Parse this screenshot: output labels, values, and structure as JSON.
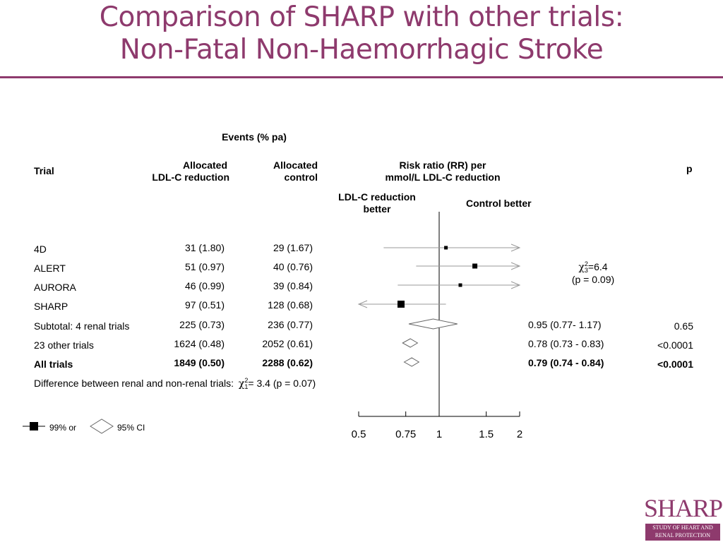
{
  "title": {
    "line1": "Comparison of SHARP with other trials:",
    "line2": "Non-Fatal Non-Haemorrhagic Stroke"
  },
  "headers": {
    "events": "Events (% pa)",
    "trial": "Trial",
    "allocated_ldl_1": "Allocated",
    "allocated_ldl_2": "LDL-C reduction",
    "allocated_control_1": "Allocated",
    "allocated_control_2": "control",
    "rr_1": "Risk ratio (RR) per",
    "rr_2": "mmol/L LDL-C reduction",
    "p": "p",
    "ldl_better_1": "LDL-C reduction",
    "ldl_better_2": "better",
    "control_better": "Control better"
  },
  "heterogeneity": {
    "chi_symbol": "χ",
    "sup": "2",
    "sub": "3",
    "value": "=6.4",
    "p": "(p = 0.09)"
  },
  "difference": {
    "label": "Difference between renal and non-renal trials:",
    "chi_symbol": "χ",
    "sup": "2",
    "sub": "1",
    "value": "= 3.4 (p = 0.07)"
  },
  "legend": {
    "square_label": "99% or",
    "diamond_label": "95% CI"
  },
  "logo": {
    "word": "SHARP",
    "line1": "STUDY OF HEART AND",
    "line2": "RENAL PROTECTION"
  },
  "colors": {
    "title": "#8e3a6d",
    "marks": "#000000",
    "ci_lines": "#999999"
  },
  "chart_data": {
    "type": "forest",
    "x_axis": {
      "scale": "log",
      "ticks": [
        0.5,
        0.75,
        1,
        1.5,
        2
      ],
      "tick_labels": [
        "0.5",
        "0.75",
        "1",
        "1.5",
        "2"
      ],
      "range": [
        0.5,
        2
      ],
      "reference_line": 1
    },
    "rows": [
      {
        "trial": "4D",
        "allocated_ldl": "31 (1.80)",
        "allocated_control": "29 (1.67)",
        "rr": 1.06,
        "lo": 0.62,
        "hi": 2,
        "arrow_hi": true,
        "shape": "square",
        "size": "small",
        "bold": false,
        "rr_text": "",
        "p": ""
      },
      {
        "trial": "ALERT",
        "allocated_ldl": "51 (0.97)",
        "allocated_control": "40 (0.76)",
        "rr": 1.36,
        "lo": 0.82,
        "hi": 2,
        "arrow_hi": true,
        "shape": "square",
        "size": "medium",
        "bold": false,
        "rr_text": "",
        "p": ""
      },
      {
        "trial": "AURORA",
        "allocated_ldl": "46 (0.99)",
        "allocated_control": "39 (0.84)",
        "rr": 1.2,
        "lo": 0.7,
        "hi": 2,
        "arrow_hi": true,
        "shape": "square",
        "size": "small",
        "bold": false,
        "rr_text": "",
        "p": ""
      },
      {
        "trial": "SHARP",
        "allocated_ldl": "97 (0.51)",
        "allocated_control": "128 (0.68)",
        "rr": 0.72,
        "lo": 0.5,
        "hi": 1.06,
        "arrow_lo": true,
        "shape": "square",
        "size": "large",
        "bold": false,
        "rr_text": "",
        "p": ""
      },
      {
        "trial": "Subtotal: 4 renal trials",
        "allocated_ldl": "225 (0.73)",
        "allocated_control": "236 (0.77)",
        "rr": 0.95,
        "lo": 0.77,
        "hi": 1.17,
        "shape": "diamond",
        "bold": false,
        "rr_text": "0.95 (0.77- 1.17)",
        "p": "0.65"
      },
      {
        "trial": "23 other trials",
        "allocated_ldl": "1624 (0.48)",
        "allocated_control": "2052 (0.61)",
        "rr": 0.78,
        "lo": 0.73,
        "hi": 0.83,
        "shape": "diamond",
        "bold": false,
        "rr_text": "0.78 (0.73 - 0.83)",
        "p": "<0.0001"
      },
      {
        "trial": "All trials",
        "allocated_ldl": "1849 (0.50)",
        "allocated_control": "2288 (0.62)",
        "rr": 0.79,
        "lo": 0.74,
        "hi": 0.84,
        "shape": "diamond",
        "bold": true,
        "rr_text": "0.79 (0.74 - 0.84)",
        "p": "<0.0001"
      }
    ]
  }
}
